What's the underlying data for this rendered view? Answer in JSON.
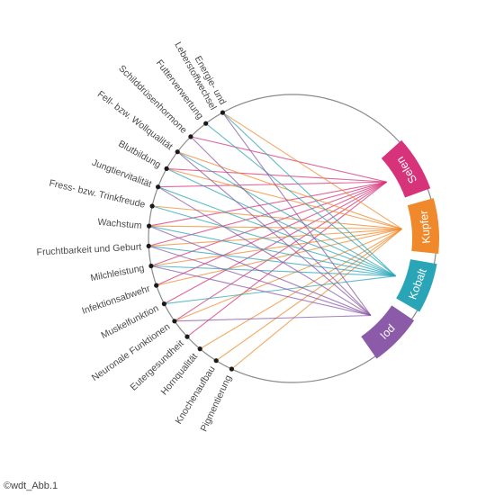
{
  "functions": [
    "Pigmentierung",
    "Knochenaufbau",
    "Hornqualität",
    "Eutergesundheit",
    "Neuronale Funktionen",
    "Muskelfunktion",
    "Infektionsabwehr",
    "Milchleistung",
    "Fruchtbarkeit und Geburt",
    "Wachstum",
    "Fress- bzw. Trinkfreude",
    "Jungtiervitalität",
    "Blutbildung",
    "Fell- bzw. Wollqualität",
    "Schilddrüsenhormone",
    "Futterverwertung",
    [
      "Energie- und",
      "Leberstoffwechsel"
    ]
  ],
  "elements": [
    {
      "name": "Selen",
      "color": "#d6337a",
      "links": [
        "Eutergesundheit",
        "Neuronale Funktionen",
        "Muskelfunktion",
        "Infektionsabwehr",
        "Milchleistung",
        "Fruchtbarkeit und Geburt",
        "Wachstum",
        "Jungtiervitalität",
        "Blutbildung",
        "Schilddrüsenhormone"
      ]
    },
    {
      "name": "Kupfer",
      "color": "#f0892b",
      "links": [
        "Pigmentierung",
        "Knochenaufbau",
        "Hornqualität",
        "Neuronale Funktionen",
        "Infektionsabwehr",
        "Milchleistung",
        "Fruchtbarkeit und Geburt",
        "Wachstum",
        "Fress- bzw. Trinkfreude",
        "Blutbildung",
        "Fell- bzw. Wollqualität",
        "Energie- und Leberstoffwechsel"
      ]
    },
    {
      "name": "Kobalt",
      "color": "#2aa5b8",
      "links": [
        "Muskelfunktion",
        "Milchleistung",
        "Fruchtbarkeit und Geburt",
        "Wachstum",
        "Fress- bzw. Trinkfreude",
        "Jungtiervitalität",
        "Blutbildung",
        "Fell- bzw. Wollqualität",
        "Futterverwertung",
        "Energie- und Leberstoffwechsel"
      ]
    },
    {
      "name": "Iod",
      "color": "#8b5aa8",
      "links": [
        "Neuronale Funktionen",
        "Milchleistung",
        "Fruchtbarkeit und Geburt",
        "Wachstum",
        "Jungtiervitalität",
        "Fell- bzw. Wollqualität",
        "Schilddrüsenhormone",
        "Energie- und Leberstoffwechsel"
      ]
    }
  ],
  "credit": "©wdt_Abb.1"
}
